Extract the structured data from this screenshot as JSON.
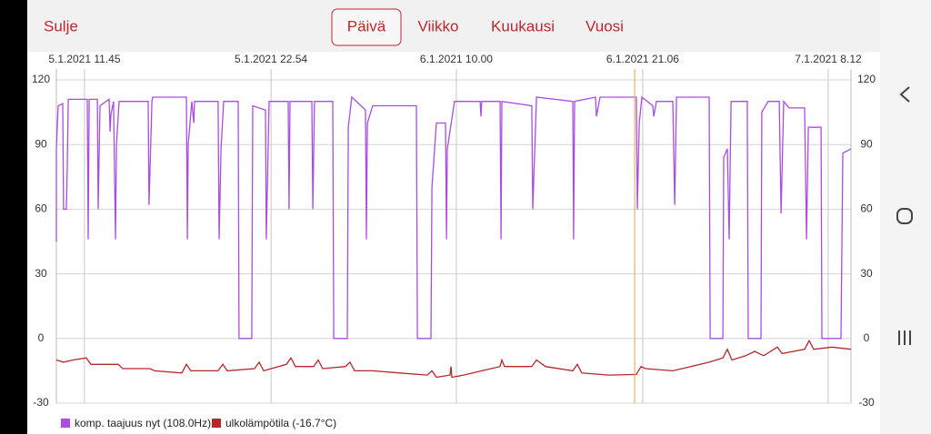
{
  "header": {
    "close": "Sulje",
    "tabs": [
      "Päivä",
      "Viikko",
      "Kuukausi",
      "Vuosi"
    ],
    "active_tab": 0
  },
  "chart_data": {
    "type": "line",
    "xlim": [
      0,
      47.5
    ],
    "xticks": [
      {
        "value": 1.68,
        "label": "5.1.2021 11.45"
      },
      {
        "value": 12.83,
        "label": "5.1.2021 22.54"
      },
      {
        "value": 23.91,
        "label": "6.1.2021 10.00"
      },
      {
        "value": 35.05,
        "label": "6.1.2021 21.06"
      },
      {
        "value": 46.14,
        "label": "7.1.2021 8.12"
      }
    ],
    "ylim": [
      -30,
      120
    ],
    "yticks": [
      -30,
      0,
      30,
      60,
      90,
      120
    ],
    "grid": true,
    "cursor_x": 34.57,
    "series": [
      {
        "name": "komp. taajuus nyt (108.0Hz)",
        "color": "#a94de0",
        "x": [
          0,
          0,
          0.11,
          0.38,
          0.43,
          0.6,
          0.65,
          0.71,
          1.85,
          1.9,
          1.96,
          2.45,
          2.5,
          2.61,
          3.15,
          3.21,
          3.26,
          3.42,
          3.53,
          3.59,
          3.75,
          5.49,
          5.54,
          5.71,
          5.76,
          7.77,
          7.83,
          7.88,
          8.1,
          8.21,
          8.26,
          9.67,
          9.73,
          9.84,
          10,
          10.87,
          10.92,
          11.68,
          11.74,
          12.5,
          12.55,
          12.72,
          13.86,
          13.91,
          13.97,
          15.27,
          15.33,
          15.43,
          16.52,
          16.58,
          17.39,
          17.45,
          17.66,
          18.48,
          18.53,
          18.59,
          18.91,
          21.52,
          21.58,
          22.39,
          22.45,
          22.61,
          22.72,
          23.26,
          23.32,
          23.37,
          23.8,
          25.33,
          25.38,
          25.43,
          26.52,
          26.58,
          26.63,
          28.42,
          28.48,
          28.7,
          30.87,
          30.92,
          30.98,
          32.23,
          32.28,
          32.5,
          34.67,
          34.73,
          34.84,
          35,
          35.65,
          35.71,
          35.87,
          36.85,
          36.96,
          37.07,
          39.02,
          39.08,
          39.84,
          39.89,
          40.11,
          40.22,
          40.33,
          41.3,
          41.36,
          42.12,
          42.17,
          42.55,
          43.21,
          43.32,
          43.48,
          43.8,
          44.73,
          44.84,
          44.95,
          45.71,
          45.76,
          46.9,
          47.01,
          47.5
        ],
        "values": [
          45,
          88,
          108,
          109,
          60,
          60,
          80,
          111,
          111,
          46,
          111,
          111,
          60,
          108,
          111,
          96,
          104,
          110,
          46,
          90,
          110,
          110,
          62,
          110,
          112,
          112,
          46,
          90,
          110,
          100,
          110,
          110,
          46,
          88,
          110,
          110,
          0,
          0,
          108,
          106,
          46,
          110,
          110,
          60,
          110,
          110,
          60,
          110,
          110,
          0,
          0,
          98,
          112,
          106,
          46,
          100,
          108,
          108,
          0,
          0,
          70,
          88,
          100,
          100,
          46,
          88,
          110,
          110,
          103,
          110,
          110,
          46,
          110,
          108,
          60,
          112,
          110,
          46,
          110,
          112,
          103,
          112,
          112,
          60,
          100,
          112,
          108,
          103,
          110,
          110,
          62,
          112,
          112,
          0,
          0,
          84,
          88,
          46,
          110,
          110,
          0,
          0,
          105,
          110,
          110,
          58,
          110,
          107,
          107,
          46,
          98,
          98,
          0,
          0,
          86,
          88
        ]
      },
      {
        "name": "ulkolämpötila (-16.7°C)",
        "color": "#b5282c",
        "x": [
          0,
          0.43,
          0.98,
          1.79,
          2.07,
          3.7,
          3.97,
          5.6,
          5.87,
          7.5,
          7.77,
          8.04,
          9.67,
          9.95,
          10.22,
          11.85,
          12.12,
          12.39,
          13.75,
          14.02,
          14.29,
          15.38,
          15.65,
          15.92,
          17.28,
          17.55,
          17.83,
          18.91,
          20.54,
          22.17,
          22.45,
          22.72,
          23.53,
          23.59,
          23.64,
          24.35,
          25.43,
          26.52,
          26.63,
          26.79,
          28.42,
          28.7,
          29.24,
          30.87,
          31.14,
          31.41,
          33.04,
          34.67,
          34.95,
          35.22,
          36.85,
          37.93,
          39.02,
          39.84,
          40.11,
          40.38,
          41.2,
          41.74,
          42.28,
          43.1,
          43.38,
          44.73,
          45,
          45.27,
          46.36,
          47.5
        ],
        "values": [
          -10,
          -11,
          -10,
          -9,
          -12,
          -12,
          -14,
          -14,
          -15,
          -16,
          -12,
          -15,
          -15,
          -12,
          -15,
          -14,
          -11,
          -15,
          -12,
          -9,
          -13,
          -13,
          -10,
          -14,
          -13,
          -11,
          -15,
          -15,
          -16,
          -17,
          -15,
          -18,
          -17,
          -13,
          -18,
          -17,
          -15,
          -13,
          -10,
          -13,
          -13,
          -10,
          -13,
          -15,
          -12,
          -16,
          -17,
          -16.7,
          -13,
          -14,
          -15,
          -13,
          -11,
          -9,
          -5,
          -10,
          -8,
          -6,
          -8,
          -4,
          -7,
          -5,
          -1,
          -5,
          -4,
          -5
        ]
      }
    ]
  }
}
